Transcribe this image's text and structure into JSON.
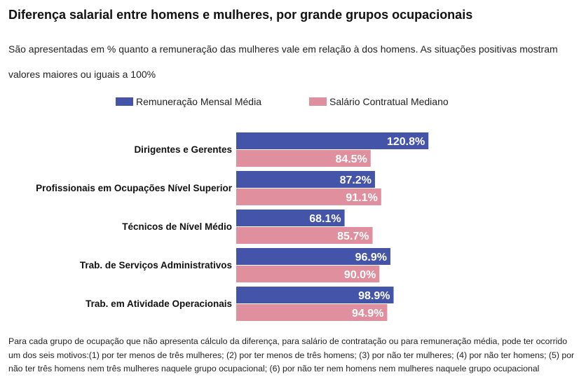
{
  "header": {
    "title": "Diferença salarial entre homens e mulheres, por grande grupos ocupacionais",
    "subtitle": "São apresentadas em % quanto a remuneração das mulheres vale em relação à dos homens. As situações positivas mostram valores maiores ou iguais a 100%"
  },
  "footnote": "Para cada grupo de ocupação que não apresenta cálculo da diferença, para salário de contratação ou para remuneração média, pode ter ocorrido um dos seis motivos:(1) por ter menos de três mulheres; (2) por ter menos de três homens; (3) por não ter mulheres; (4) por não ter homens; (5) por não ter três homens nem três mulheres naquele grupo ocupacional; (6) por não ter nem homens nem mulheres naquele grupo ocupacional",
  "chart_data": {
    "type": "bar",
    "orientation": "horizontal",
    "title": "Diferença salarial entre homens e mulheres, por grande grupos ocupacionais",
    "xlabel": "",
    "ylabel": "",
    "xlim": [
      0,
      130
    ],
    "grid": false,
    "legend_position": "top",
    "value_suffix": "%",
    "categories": [
      "Dirigentes e Gerentes",
      "Profissionais em Ocupações Nível Superior",
      "Técnicos de Nível Médio",
      "Trab. de Serviços Administrativos",
      "Trab. em Atividade Operacionais"
    ],
    "series": [
      {
        "name": "Remuneração Mensal Média",
        "color": "#4454a8",
        "values": [
          120.8,
          87.2,
          68.1,
          96.9,
          98.9
        ]
      },
      {
        "name": "Salário Contratual Mediano",
        "color": "#e08f9f",
        "values": [
          84.5,
          91.1,
          85.7,
          90.0,
          94.9
        ]
      }
    ]
  }
}
